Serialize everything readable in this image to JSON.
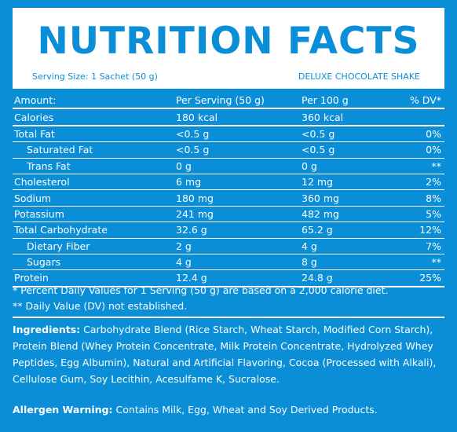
{
  "header": {
    "title": "NUTRITION FACTS",
    "serving_size": "Serving Size: 1 Sachet (50 g)",
    "flavour": "DELUXE CHOCOLATE SHAKE"
  },
  "columns": [
    "Amount:",
    "Per Serving (50 g)",
    "Per 100 g",
    "% DV*"
  ],
  "rows": [
    {
      "name": "Calories",
      "serving": "180 kcal",
      "per100": "360 kcal",
      "dv": ""
    },
    {
      "name": "Total Fat",
      "serving": "<0.5 g",
      "per100": "<0.5 g",
      "dv": "0%"
    },
    {
      "name": "Saturated Fat",
      "serving": "<0.5 g",
      "per100": "<0.5 g",
      "dv": "0%"
    },
    {
      "name": "Trans Fat",
      "serving": "0 g",
      "per100": "0 g",
      "dv": "**"
    },
    {
      "name": "Cholesterol",
      "serving": "6 mg",
      "per100": "12 mg",
      "dv": "2%"
    },
    {
      "name": "Sodium",
      "serving": "180 mg",
      "per100": "360 mg",
      "dv": "8%"
    },
    {
      "name": "Potassium",
      "serving": "241 mg",
      "per100": "482 mg",
      "dv": "5%"
    },
    {
      "name": "Total Carbohydrate",
      "serving": "32.6 g",
      "per100": "65.2 g",
      "dv": "12%"
    },
    {
      "name": "Dietary Fiber",
      "serving": "2 g",
      "per100": "4 g",
      "dv": "7%"
    },
    {
      "name": "Sugars",
      "serving": "4 g",
      "per100": "8 g",
      "dv": "**"
    },
    {
      "name": "Protein",
      "serving": "12.4 g",
      "per100": "24.8 g",
      "dv": "25%"
    }
  ],
  "notes": {
    "percent_dv": "* Percent Daily Values for 1 Serving (50 g) are based on a 2,000 calorie diet.",
    "not_established": "** Daily Value (DV) not established."
  },
  "ingredients": {
    "label": "Ingredients:",
    "text": " Carbohydrate Blend (Rice Starch, Wheat Starch, Modified Corn Starch), Protein Blend (Whey Protein Concentrate, Milk Protein Concentrate, Hydrolyzed Whey Peptides, Egg Albumin), Natural and Artificial Flavoring, Cocoa (Processed with Alkali), Cellulose Gum, Soy Lecithin, Acesulfame K, Sucralose."
  },
  "allergen": {
    "label": "Allergen Warning:",
    "text": " Contains Milk, Egg, Wheat and Soy Derived Products."
  }
}
